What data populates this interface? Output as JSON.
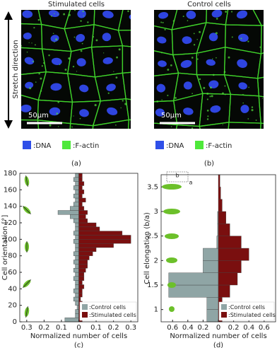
{
  "figure": {
    "stretch_direction": "Stretch direction",
    "panels": [
      {
        "title": "Stimulated cells",
        "scale_bar": "50μm",
        "legend": [
          ":DNA",
          ":F-actin"
        ],
        "label": "(a)"
      },
      {
        "title": "Control cells",
        "scale_bar": "50μm",
        "legend": [
          ":DNA",
          ":F-actin"
        ],
        "label": "(b)"
      }
    ]
  },
  "chart_data": [
    {
      "type": "histogram",
      "panel_label": "(c)",
      "x_label": "Normalized number of cells",
      "y_label": "Cell orientation [°]",
      "bins": [
        0,
        5,
        10,
        15,
        20,
        25,
        30,
        35,
        40,
        45,
        50,
        55,
        60,
        65,
        70,
        75,
        80,
        85,
        90,
        95,
        100,
        105,
        110,
        115,
        120,
        125,
        130,
        135,
        140,
        145,
        150,
        155,
        160,
        165,
        170,
        175,
        180
      ],
      "series": [
        {
          "name": ":Control cells",
          "color": "#8fa5a5",
          "values": [
            -0.08,
            -0.02,
            -0.02,
            -0.01,
            -0.02,
            -0.03,
            -0.02,
            -0.03,
            -0.02,
            -0.02,
            -0.03,
            -0.02,
            -0.03,
            -0.02,
            -0.03,
            -0.02,
            -0.03,
            -0.02,
            -0.02,
            -0.03,
            -0.02,
            -0.03,
            -0.02,
            -0.02,
            -0.03,
            -0.05,
            -0.12,
            -0.05,
            -0.03,
            -0.02,
            -0.03,
            -0.02,
            -0.03,
            -0.02,
            -0.03,
            -0.02
          ]
        },
        {
          "name": ":Stimulated cells",
          "color": "#7a0f0f",
          "values": [
            0.02,
            0.03,
            0.02,
            0.02,
            0.02,
            0.01,
            0.02,
            0.02,
            0.03,
            0.02,
            0.03,
            0.03,
            0.04,
            0.05,
            0.05,
            0.06,
            0.08,
            0.1,
            0.2,
            0.3,
            0.3,
            0.25,
            0.12,
            0.1,
            0.05,
            0.04,
            0.05,
            0.03,
            0.02,
            0.04,
            0.02,
            0.03,
            0.02,
            0.03,
            0.02,
            0.02
          ]
        }
      ],
      "xlim": [
        -0.34,
        0.34
      ],
      "xticks": [
        {
          "value": -0.3,
          "label": "0.3"
        },
        {
          "value": -0.2,
          "label": "0.2"
        },
        {
          "value": -0.1,
          "label": "0.1"
        },
        0,
        0.1,
        0.2,
        0.3
      ],
      "ylim": [
        0,
        180
      ],
      "yticks": [
        0,
        20,
        40,
        60,
        80,
        100,
        120,
        140,
        160,
        180
      ],
      "legend": "lower right"
    },
    {
      "type": "histogram",
      "panel_label": "(d)",
      "x_label": "Normalized number of cells",
      "y_label": "Cell elongation (b/a)",
      "annotations": [
        "b",
        "a"
      ],
      "bins": [
        0.75,
        1,
        1.25,
        1.5,
        1.75,
        2,
        2.25,
        2.5,
        2.75,
        3,
        3.25,
        3.5,
        3.75
      ],
      "series": [
        {
          "name": ":Control cells",
          "color": "#8fa5a5",
          "values": [
            -0.15,
            -0.15,
            -0.65,
            -0.65,
            -0.2,
            -0.2,
            -0.02,
            -0.01,
            -0.01,
            0,
            0,
            0
          ]
        },
        {
          "name": ":Stimulated cells",
          "color": "#7a0f0f",
          "values": [
            0.05,
            0.05,
            0.15,
            0.25,
            0.3,
            0.4,
            0.3,
            0.15,
            0.1,
            0.05,
            0.03,
            0.02
          ]
        }
      ],
      "xlim": [
        -0.75,
        0.75
      ],
      "xticks": [
        {
          "value": -0.6,
          "label": "0.6"
        },
        {
          "value": -0.4,
          "label": "0.4"
        },
        {
          "value": -0.2,
          "label": "0.2"
        },
        0,
        0.2,
        0.4,
        0.6
      ],
      "ylim": [
        0.75,
        3.75
      ],
      "yticks": [
        1,
        1.5,
        2,
        2.5,
        3,
        3.5
      ],
      "legend": "lower right"
    }
  ]
}
